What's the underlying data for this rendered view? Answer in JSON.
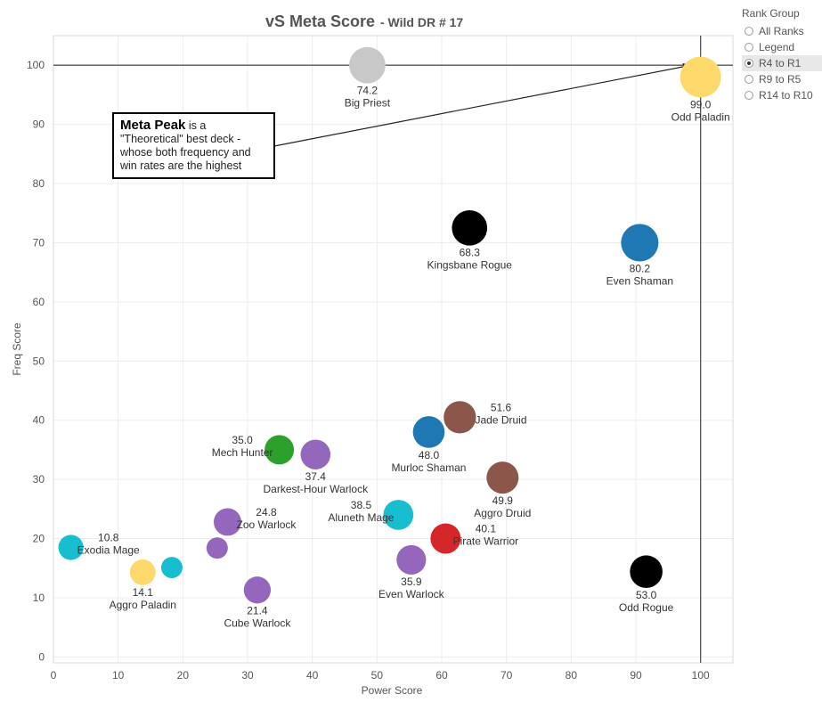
{
  "chart_data": {
    "type": "scatter",
    "title": "vS Meta Score",
    "subtitle": "- Wild DR # 17",
    "xlabel": "Power Score",
    "ylabel": "Freq Score",
    "xlim": [
      0,
      105
    ],
    "ylim": [
      -1,
      105
    ],
    "xticks": [
      0,
      10,
      20,
      30,
      40,
      50,
      60,
      70,
      80,
      90,
      100
    ],
    "yticks": [
      0,
      10,
      20,
      30,
      40,
      50,
      60,
      70,
      80,
      90,
      100
    ],
    "grid": true,
    "reference_lines": {
      "x": 100,
      "y": 100
    },
    "points": [
      {
        "name": "Big Priest",
        "score": "74.2",
        "x": 48.5,
        "y": 100.0,
        "color": "#c8c8c8",
        "label_pos": "below"
      },
      {
        "name": "Odd Paladin",
        "score": "99.0",
        "x": 100.0,
        "y": 98.0,
        "color": "#fdd86a",
        "label_pos": "below"
      },
      {
        "name": "Kingsbane Rogue",
        "score": "68.3",
        "x": 64.3,
        "y": 72.5,
        "color": "#000000",
        "label_pos": "below"
      },
      {
        "name": "Even Shaman",
        "score": "80.2",
        "x": 90.6,
        "y": 70.0,
        "color": "#1f77b4",
        "label_pos": "below"
      },
      {
        "name": "Jade Druid",
        "score": "51.6",
        "x": 62.8,
        "y": 40.5,
        "color": "#8c564b",
        "label_pos": "right"
      },
      {
        "name": "Murloc Shaman",
        "score": "48.0",
        "x": 58.0,
        "y": 38.0,
        "color": "#1f77b4",
        "label_pos": "below"
      },
      {
        "name": "Mech Hunter",
        "score": "35.0",
        "x": 34.9,
        "y": 35.0,
        "color": "#2ca02c",
        "label_pos": "left"
      },
      {
        "name": "Darkest-Hour Warlock",
        "score": "37.4",
        "x": 40.5,
        "y": 34.2,
        "color": "#9467bd",
        "label_pos": "below"
      },
      {
        "name": "Aggro Druid",
        "score": "49.9",
        "x": 69.4,
        "y": 30.3,
        "color": "#8c564b",
        "label_pos": "below"
      },
      {
        "name": "Aluneth Mage",
        "score": "38.5",
        "x": 53.3,
        "y": 24.0,
        "color": "#17becf",
        "label_pos": "left"
      },
      {
        "name": "Zoo Warlock",
        "score": "24.8",
        "x": 26.9,
        "y": 22.8,
        "color": "#9467bd",
        "label_pos": "right"
      },
      {
        "name": "Pirate Warrior",
        "score": "40.1",
        "x": 60.6,
        "y": 20.0,
        "color": "#d62728",
        "label_pos": "right"
      },
      {
        "name": "Exodia Mage",
        "score": "10.8",
        "x": 2.7,
        "y": 18.5,
        "color": "#17becf",
        "label_pos": "right"
      },
      {
        "name": "",
        "score": "",
        "x": 25.3,
        "y": 18.4,
        "color": "#9467bd",
        "label_pos": "none"
      },
      {
        "name": "Even Warlock",
        "score": "35.9",
        "x": 55.3,
        "y": 16.4,
        "color": "#9467bd",
        "label_pos": "below"
      },
      {
        "name": "",
        "score": "",
        "x": 18.3,
        "y": 15.1,
        "color": "#17becf",
        "label_pos": "none"
      },
      {
        "name": "Aggro Paladin",
        "score": "14.1",
        "x": 13.8,
        "y": 14.3,
        "color": "#fdd86a",
        "label_pos": "below"
      },
      {
        "name": "Odd Rogue",
        "score": "53.0",
        "x": 91.6,
        "y": 14.4,
        "color": "#000000",
        "label_pos": "below"
      },
      {
        "name": "Cube Warlock",
        "score": "21.4",
        "x": 31.5,
        "y": 11.3,
        "color": "#9467bd",
        "label_pos": "below"
      }
    ]
  },
  "annotation": {
    "strong": "Meta Peak",
    "text": " is a \"Theoretical\" best deck - whose both frequency and win rates are the highest"
  },
  "legend": {
    "title": "Rank Group",
    "options": [
      "All Ranks",
      "Legend",
      "R4 to R1",
      "R9 to R5",
      "R14 to R10"
    ],
    "selected": "R4 to R1"
  }
}
